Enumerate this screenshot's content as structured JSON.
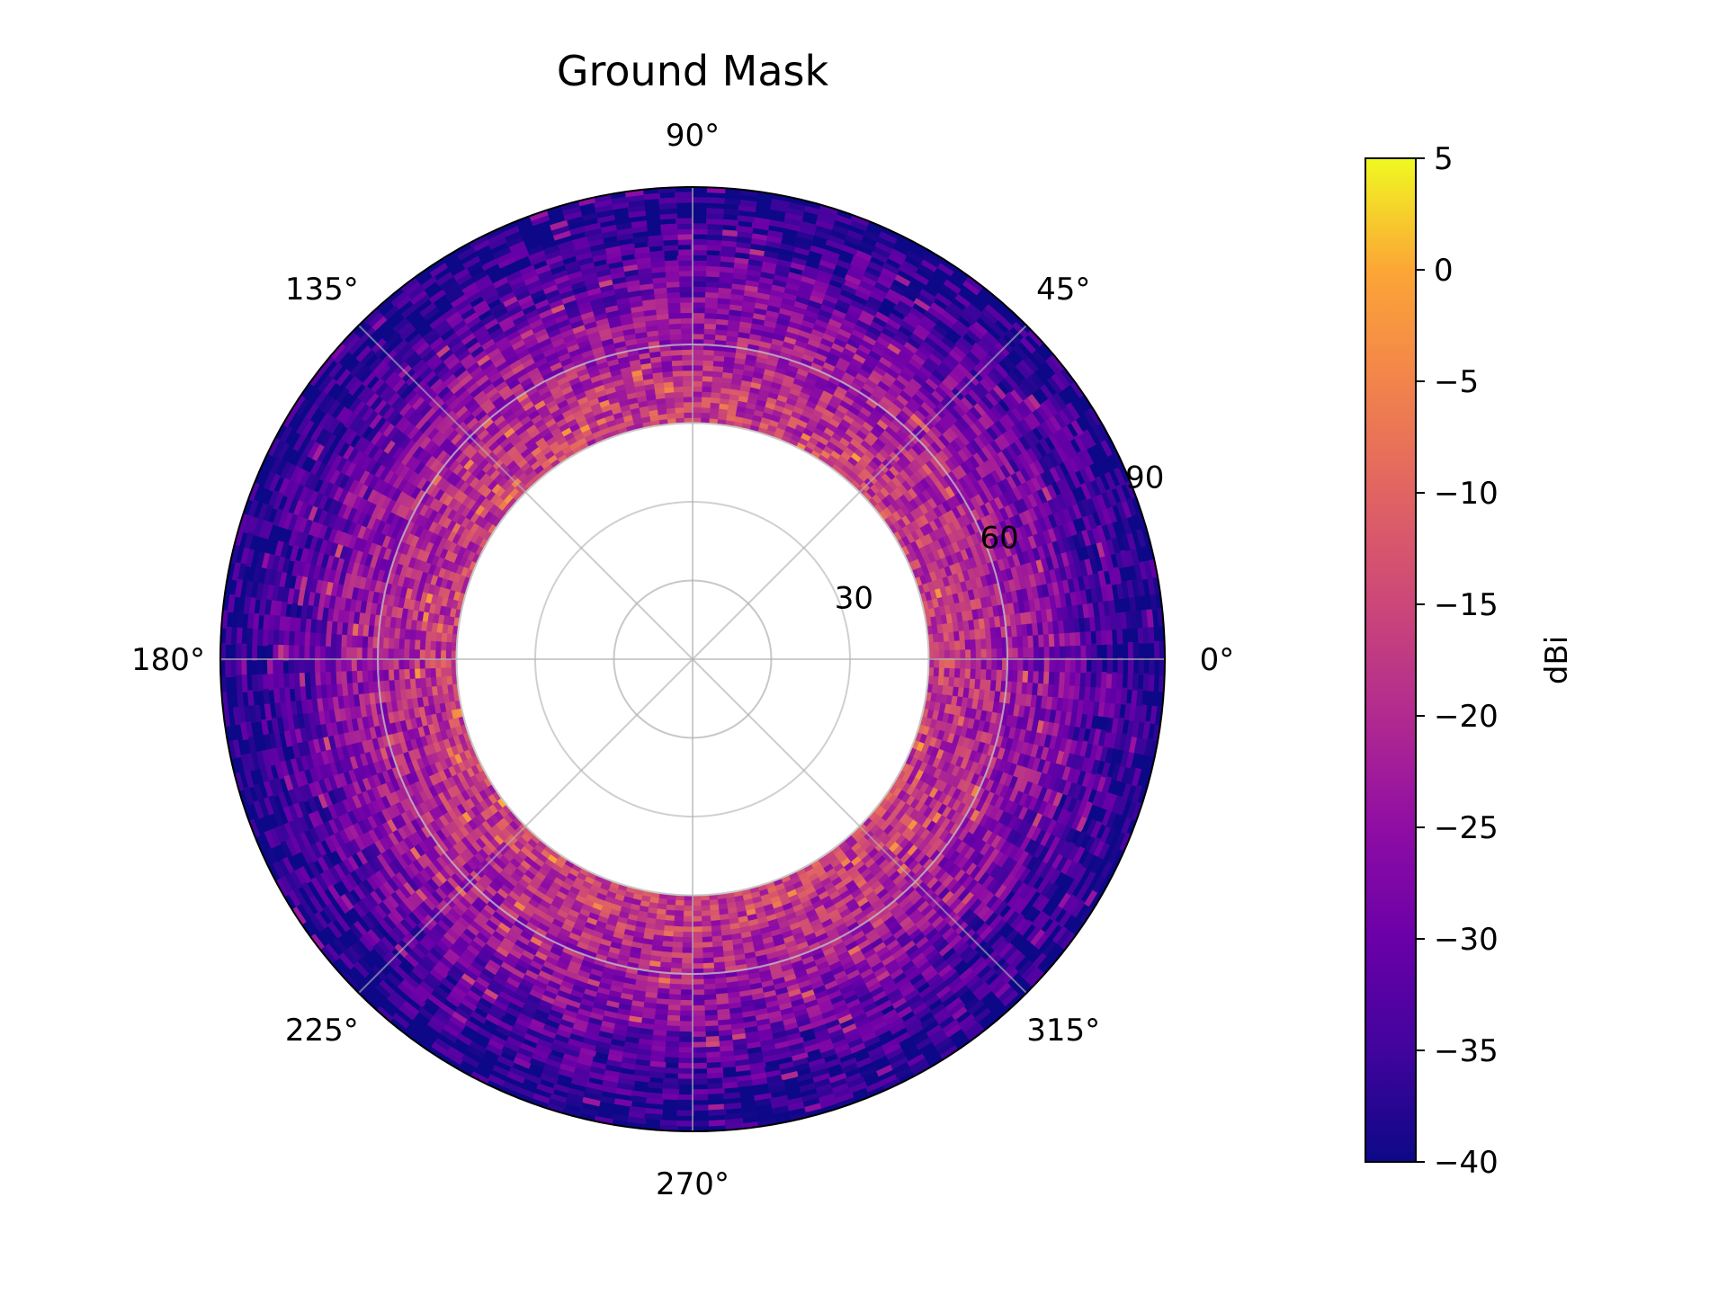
{
  "chart_data": {
    "type": "heatmap",
    "projection": "polar",
    "title": "Ground Mask",
    "angular_ticks": [
      "0°",
      "45°",
      "90°",
      "135°",
      "180°",
      "225°",
      "270°",
      "315°"
    ],
    "radial_ticks": [
      "30",
      "60",
      "90"
    ],
    "radial_range": [
      0,
      90
    ],
    "data_radius_range": [
      45,
      90
    ],
    "masked_inner_radius": 45,
    "grid": true,
    "colormap": "plasma",
    "colorbar": {
      "label": "dBi",
      "min": -40,
      "max": 5,
      "ticks": [
        "5",
        "0",
        "−5",
        "−10",
        "−15",
        "−20",
        "−25",
        "−30",
        "−35",
        "−40"
      ],
      "tick_values": [
        5,
        0,
        -5,
        -10,
        -15,
        -20,
        -25,
        -30,
        -35,
        -40
      ],
      "placement": "right"
    },
    "radial_profile": {
      "radius": [
        45,
        50,
        55,
        60,
        65,
        70,
        75,
        80,
        85,
        90
      ],
      "typical_dBi": [
        -16,
        -18,
        -20,
        -22,
        -25,
        -28,
        -32,
        -35,
        -38,
        -40
      ]
    }
  }
}
